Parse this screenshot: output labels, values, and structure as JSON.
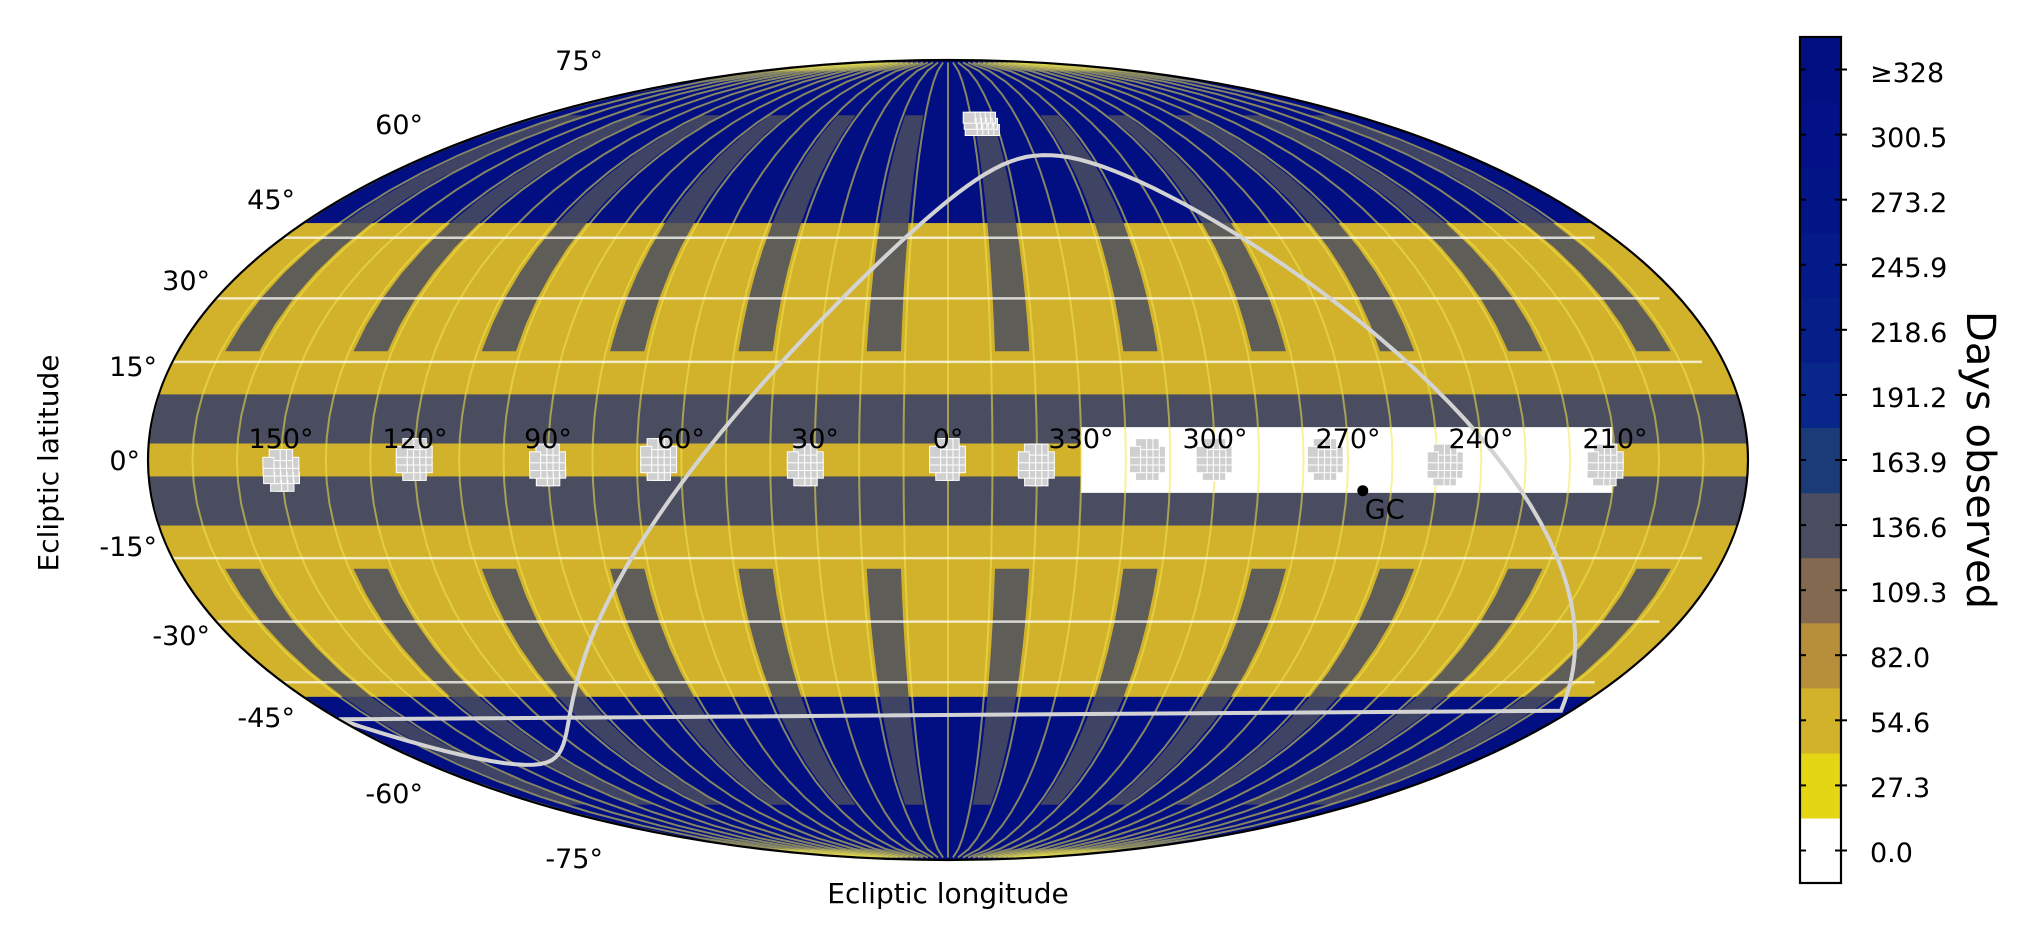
{
  "chart_data": {
    "type": "heatmap",
    "projection": "mollweide",
    "xlabel": "Ecliptic longitude",
    "ylabel": "Ecliptic latitude",
    "longitude_ticks": [
      "150°",
      "120°",
      "90°",
      "60°",
      "30°",
      "0°",
      "330°",
      "300°",
      "270°",
      "240°",
      "210°"
    ],
    "latitude_ticks": [
      {
        "value": 75,
        "label": "75°"
      },
      {
        "value": 60,
        "label": "60°"
      },
      {
        "value": 45,
        "label": "45°"
      },
      {
        "value": 30,
        "label": "30°"
      },
      {
        "value": 15,
        "label": "15°"
      },
      {
        "value": 0,
        "label": "0°"
      },
      {
        "value": -15,
        "label": "-15°"
      },
      {
        "value": -30,
        "label": "-30°"
      },
      {
        "value": -45,
        "label": "-45°"
      },
      {
        "value": -60,
        "label": "-60°"
      },
      {
        "value": -75,
        "label": "-75°"
      }
    ],
    "colorbar": {
      "title": "Days observed",
      "tick_labels": [
        "0.0",
        "27.3",
        "54.6",
        "82.0",
        "109.3",
        "136.6",
        "163.9",
        "191.2",
        "218.6",
        "245.9",
        "273.2",
        "300.5",
        "≥328"
      ],
      "colors": [
        "#ffffff",
        "#e4d614",
        "#d1b22a",
        "#b78f3a",
        "#82694f",
        "#4a4d60",
        "#1a3a78",
        "#09278a",
        "#061f88",
        "#041a88",
        "#031586",
        "#021186",
        "#020f82"
      ]
    },
    "ecliptic_bands": [
      {
        "lat_range": [
          45,
          90
        ],
        "value": 310
      },
      {
        "lat_range": [
          30,
          45
        ],
        "value": 40
      },
      {
        "lat_range": [
          12,
          30
        ],
        "value": 50
      },
      {
        "lat_range": [
          3,
          12
        ],
        "value": 120
      },
      {
        "lat_range": [
          -3,
          3
        ],
        "value": 50
      },
      {
        "lat_range": [
          -12,
          -3
        ],
        "value": 120
      },
      {
        "lat_range": [
          -30,
          -12
        ],
        "value": 50
      },
      {
        "lat_range": [
          -45,
          -30
        ],
        "value": 40
      },
      {
        "lat_range": [
          -90,
          -45
        ],
        "value": 310
      }
    ],
    "unobserved_region": {
      "lon_range": [
        330,
        210
      ],
      "lat_range": [
        -6,
        6
      ]
    },
    "galactic_plane_color": "#d3d3d3",
    "annotation": {
      "label": "GC",
      "lon": 266.4,
      "lat": -5.6
    }
  }
}
